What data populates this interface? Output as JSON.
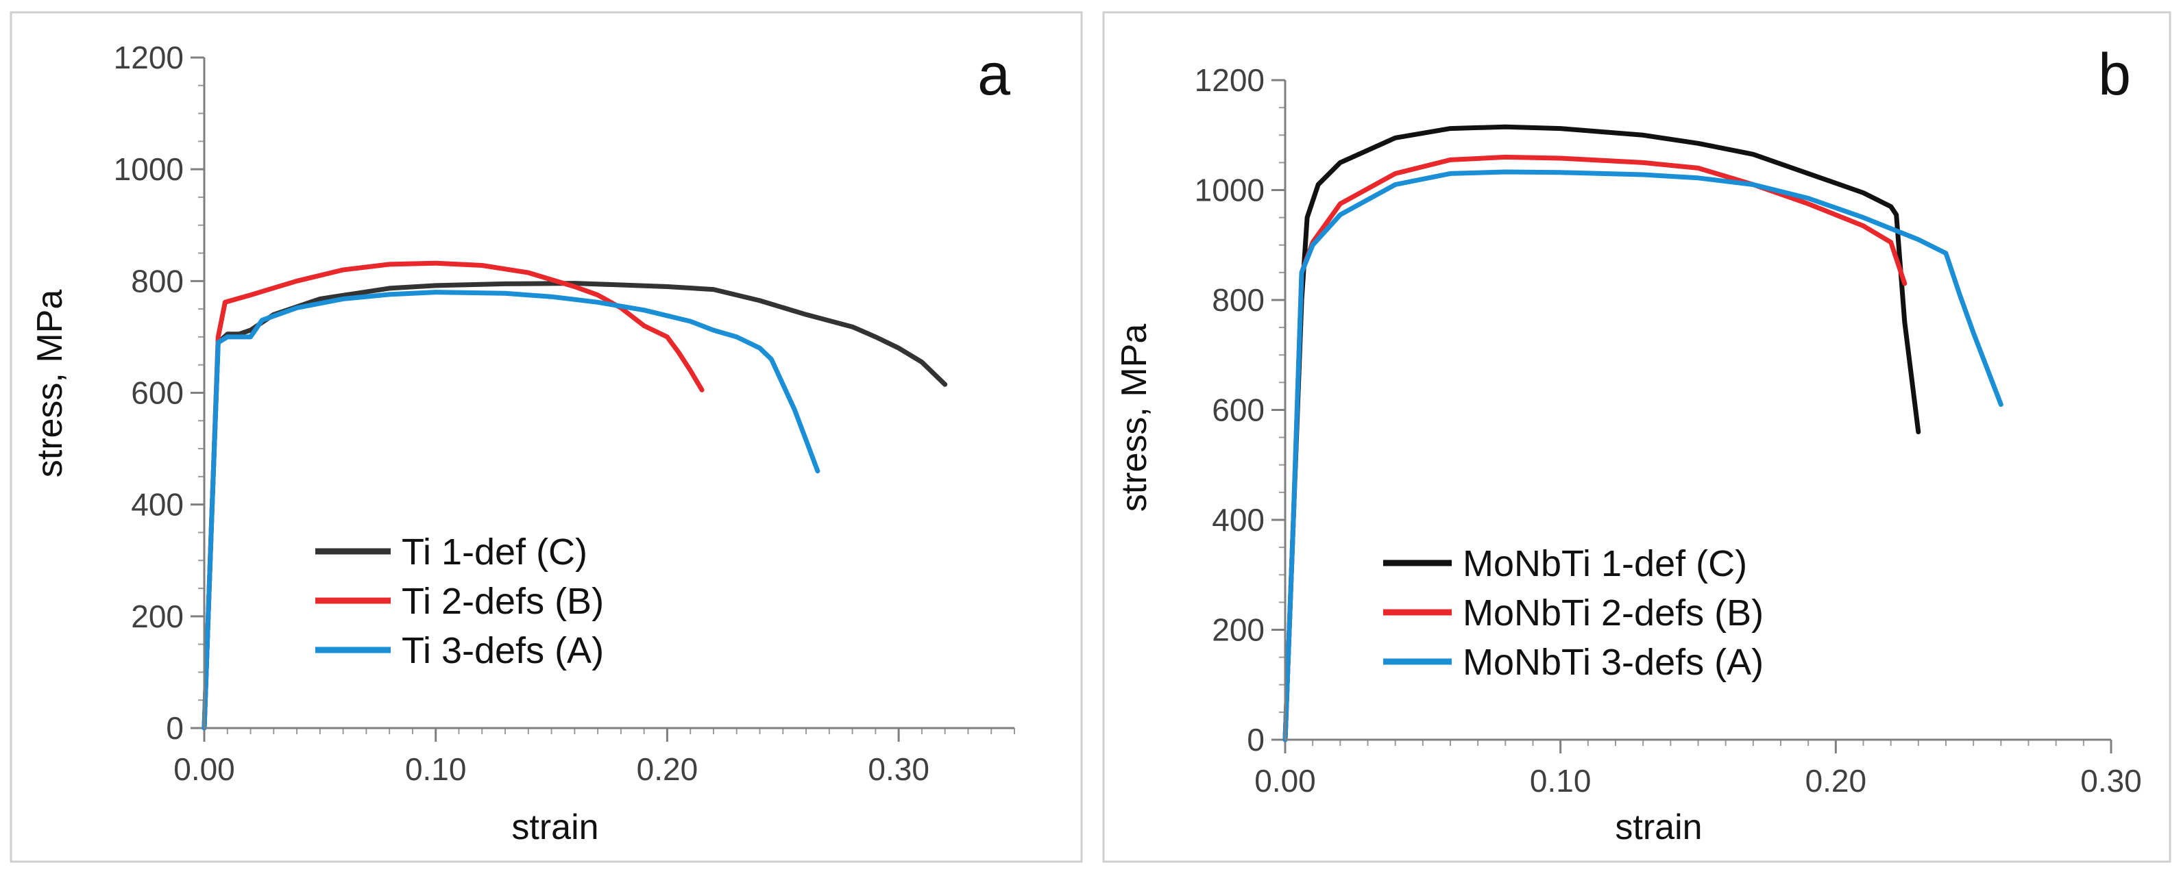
{
  "chart_data": [
    {
      "type": "line",
      "panel_label": "a",
      "xlabel": "strain",
      "ylabel": "stress, MPa",
      "xlim": [
        0,
        0.35
      ],
      "ylim": [
        0,
        1200
      ],
      "x_ticks": [
        0,
        0.1,
        0.2,
        0.3
      ],
      "x_tick_labels": [
        "0.00",
        "0.10",
        "0.20",
        "0.30"
      ],
      "y_ticks": [
        0,
        200,
        400,
        600,
        800,
        1000,
        1200
      ],
      "y_tick_labels": [
        "0",
        "200",
        "400",
        "600",
        "800",
        "1000",
        "1200"
      ],
      "grid": false,
      "legend_position": "bottom-left",
      "series": [
        {
          "name": "Ti 1-def (C)",
          "color": "#333333",
          "x": [
            0.0,
            0.003,
            0.006,
            0.01,
            0.015,
            0.02,
            0.03,
            0.05,
            0.08,
            0.1,
            0.13,
            0.16,
            0.18,
            0.2,
            0.22,
            0.24,
            0.26,
            0.28,
            0.29,
            0.3,
            0.31,
            0.32
          ],
          "y": [
            0,
            350,
            690,
            705,
            705,
            712,
            740,
            768,
            787,
            792,
            795,
            796,
            793,
            790,
            785,
            765,
            740,
            718,
            700,
            680,
            655,
            615
          ]
        },
        {
          "name": "Ti 2-defs (B)",
          "color": "#e8282b",
          "x": [
            0.0,
            0.003,
            0.006,
            0.009,
            0.02,
            0.04,
            0.06,
            0.08,
            0.1,
            0.12,
            0.14,
            0.16,
            0.17,
            0.18,
            0.19,
            0.2,
            0.205,
            0.21,
            0.215
          ],
          "y": [
            0,
            350,
            700,
            762,
            775,
            800,
            820,
            830,
            832,
            828,
            815,
            790,
            775,
            752,
            720,
            700,
            672,
            640,
            605
          ]
        },
        {
          "name": "Ti 3-defs (A)",
          "color": "#1a8fd6",
          "x": [
            0.0,
            0.003,
            0.006,
            0.01,
            0.02,
            0.022,
            0.025,
            0.04,
            0.06,
            0.08,
            0.1,
            0.13,
            0.15,
            0.17,
            0.19,
            0.21,
            0.22,
            0.23,
            0.24,
            0.245,
            0.25,
            0.255,
            0.26,
            0.265
          ],
          "y": [
            0,
            350,
            690,
            700,
            700,
            712,
            730,
            752,
            768,
            776,
            780,
            778,
            772,
            762,
            748,
            728,
            712,
            700,
            680,
            660,
            615,
            570,
            515,
            460
          ]
        }
      ]
    },
    {
      "type": "line",
      "panel_label": "b",
      "xlabel": "strain",
      "ylabel": "stress, MPa",
      "xlim": [
        0,
        0.3
      ],
      "ylim": [
        0,
        1200
      ],
      "x_ticks": [
        0,
        0.1,
        0.2,
        0.3
      ],
      "x_tick_labels": [
        "0.00",
        "0.10",
        "0.20",
        "0.30"
      ],
      "y_ticks": [
        0,
        200,
        400,
        600,
        800,
        1000,
        1200
      ],
      "y_tick_labels": [
        "0",
        "200",
        "400",
        "600",
        "800",
        "1000",
        "1200"
      ],
      "grid": false,
      "legend_position": "bottom-left",
      "series": [
        {
          "name": "MoNbTi 1-def (C)",
          "color": "#111111",
          "x": [
            0.0,
            0.003,
            0.006,
            0.008,
            0.012,
            0.02,
            0.04,
            0.06,
            0.08,
            0.1,
            0.13,
            0.15,
            0.17,
            0.19,
            0.21,
            0.22,
            0.222,
            0.225,
            0.23
          ],
          "y": [
            0,
            400,
            800,
            950,
            1010,
            1050,
            1095,
            1112,
            1115,
            1112,
            1100,
            1085,
            1065,
            1030,
            995,
            970,
            955,
            760,
            560
          ]
        },
        {
          "name": "MoNbTi 2-defs (B)",
          "color": "#e8282b",
          "x": [
            0.0,
            0.003,
            0.006,
            0.01,
            0.02,
            0.04,
            0.06,
            0.08,
            0.1,
            0.13,
            0.15,
            0.17,
            0.19,
            0.21,
            0.22,
            0.225
          ],
          "y": [
            0,
            400,
            850,
            905,
            975,
            1030,
            1055,
            1060,
            1058,
            1050,
            1040,
            1010,
            975,
            935,
            905,
            830
          ]
        },
        {
          "name": "MoNbTi 3-defs (A)",
          "color": "#1a8fd6",
          "x": [
            0.0,
            0.003,
            0.006,
            0.01,
            0.02,
            0.04,
            0.06,
            0.08,
            0.1,
            0.13,
            0.15,
            0.17,
            0.19,
            0.21,
            0.22,
            0.23,
            0.24,
            0.245,
            0.25,
            0.26
          ],
          "y": [
            0,
            400,
            850,
            900,
            955,
            1010,
            1030,
            1033,
            1032,
            1028,
            1022,
            1010,
            985,
            950,
            930,
            910,
            885,
            810,
            740,
            610
          ]
        }
      ]
    }
  ]
}
